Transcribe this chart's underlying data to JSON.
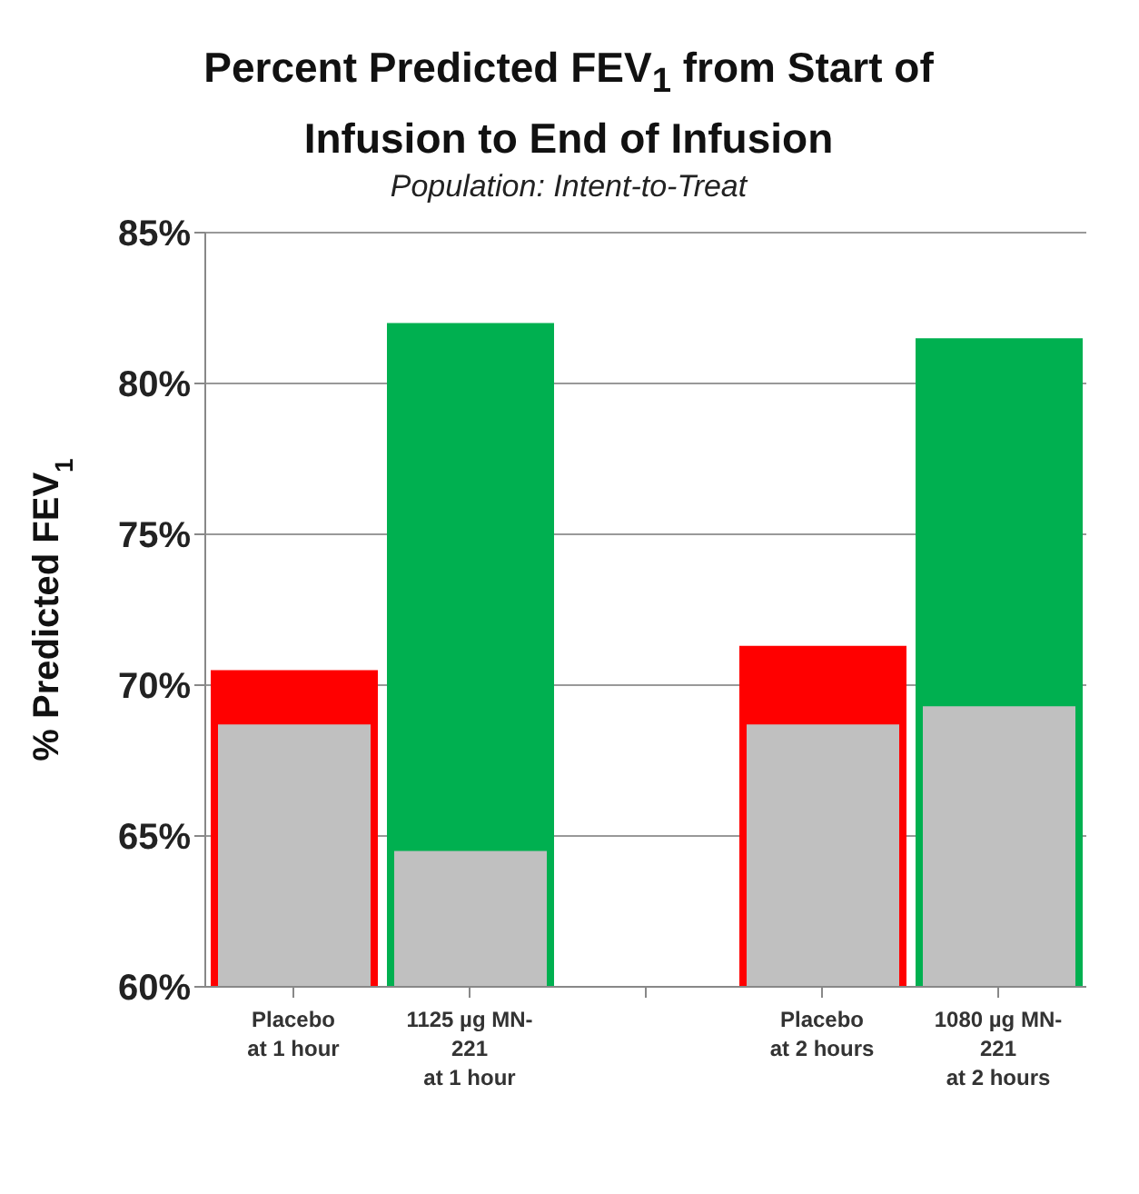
{
  "chart_data": {
    "type": "bar",
    "title": "Percent Predicted FEV$_{1}$ from Start of Infusion to End of Infusion",
    "subtitle": "Population: Intent-to-Treat",
    "ylabel": "% Predicted FEV$_{1}$",
    "categories": [
      "Placebo\nat 1 hour",
      "1125 µg MN-\n221\nat 1 hour",
      null,
      "Placebo\nat 2 hours",
      "1080 µg MN-\n221\nat 2 hours"
    ],
    "series": [
      {
        "colors": [
          "#ff0000",
          "#00b050",
          null,
          "#ff0000",
          "#00b050"
        ],
        "values": [
          70.5,
          82.0,
          null,
          71.3,
          81.5
        ]
      },
      {
        "color": "#c0c0c0",
        "values": [
          68.7,
          64.5,
          null,
          68.7,
          69.3
        ]
      }
    ],
    "ylim": [
      60,
      85
    ],
    "yticks": [
      {
        "value": 60,
        "label": "60%"
      },
      {
        "value": 65,
        "label": "65%"
      },
      {
        "value": 70,
        "label": "70%"
      },
      {
        "value": 75,
        "label": "75%"
      },
      {
        "value": 80,
        "label": "80%"
      },
      {
        "value": 85,
        "label": "85%"
      }
    ],
    "grid": "y"
  }
}
